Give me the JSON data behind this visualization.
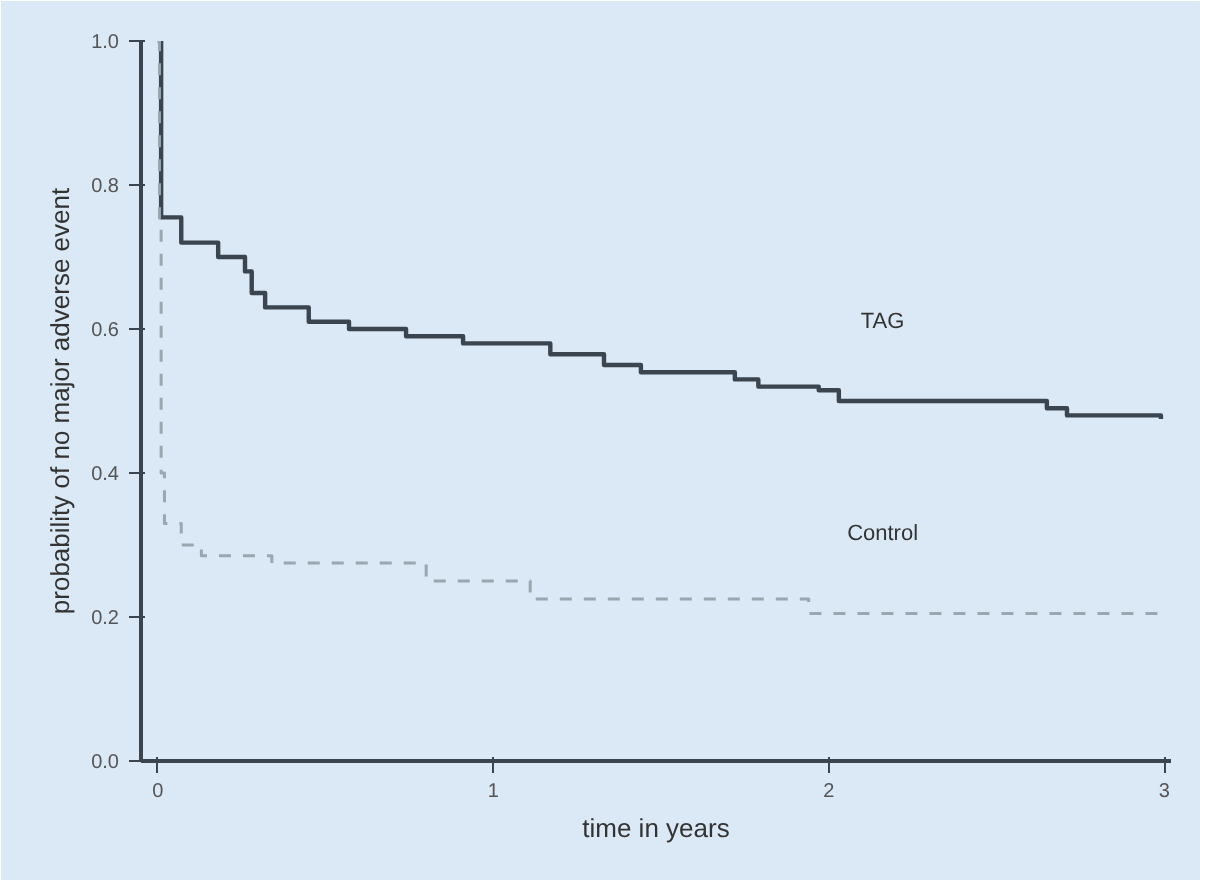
{
  "chart_data": {
    "type": "step",
    "xlabel": "time in years",
    "ylabel": "probability of no major adverse event",
    "xlim": [
      -0.05,
      3.02
    ],
    "ylim": [
      0,
      1
    ],
    "xticks": [
      0,
      1,
      2,
      3
    ],
    "yticks": [
      {
        "value": 0,
        "label": "0.0"
      },
      {
        "value": 0.2,
        "label": "0.2"
      },
      {
        "value": 0.4,
        "label": "0.4"
      },
      {
        "value": 0.6,
        "label": "0.6"
      },
      {
        "value": 0.8,
        "label": "0.8"
      },
      {
        "value": 1,
        "label": "1.0"
      }
    ],
    "grid": false,
    "series": [
      {
        "name": "TAG",
        "color": "#3a4550",
        "line_style": "solid",
        "x": [
          0,
          0.01,
          0.07,
          0.18,
          0.26,
          0.28,
          0.32,
          0.45,
          0.57,
          0.74,
          0.91,
          1.17,
          1.33,
          1.44,
          1.72,
          1.79,
          1.97,
          2.03,
          2.65,
          2.71,
          2.99
        ],
        "values": [
          1.0,
          0.755,
          0.72,
          0.7,
          0.68,
          0.65,
          0.63,
          0.61,
          0.6,
          0.59,
          0.58,
          0.565,
          0.55,
          0.54,
          0.53,
          0.52,
          0.515,
          0.5,
          0.49,
          0.48,
          0.475
        ]
      },
      {
        "name": "Control",
        "color": "#9aa6b0",
        "line_style": "dashed",
        "x": [
          0,
          0.005,
          0.01,
          0.02,
          0.07,
          0.13,
          0.34,
          0.8,
          1.11,
          1.94,
          2.99
        ],
        "values": [
          1.0,
          0.75,
          0.4,
          0.33,
          0.3,
          0.285,
          0.275,
          0.25,
          0.225,
          0.205,
          0.2
        ]
      }
    ]
  }
}
